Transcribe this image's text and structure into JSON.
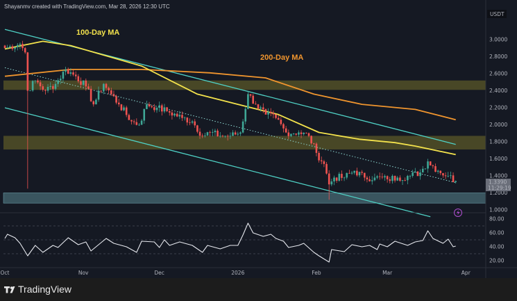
{
  "header": {
    "attribution": "Shayanmv created with TradingView.com, Mar 28, 2026 12:30 UTC"
  },
  "footer": {
    "brand": "TradingView",
    "logo_icon": "tradingview-logo-icon"
  },
  "colors": {
    "background": "#151923",
    "up": "#3fa796",
    "down": "#ef5350",
    "channel": "#4fd1c5",
    "ma100": "#f3e24c",
    "ma200": "#f0952e",
    "resistance_zone": "#4b4a27",
    "support_zone": "#3d5963",
    "rsi": "#e6e8ee"
  },
  "price_axis": {
    "currency": "USDT",
    "ticks": [
      "1.0000",
      "1.2000",
      "1.4000",
      "1.6000",
      "1.8000",
      "2.0000",
      "2.2000",
      "2.4000",
      "2.6000",
      "2.8000",
      "3.0000"
    ],
    "last_price": "1.3390",
    "countdown": "11:29:19"
  },
  "time_axis": {
    "labels": [
      {
        "date": "2025-10-01",
        "text": "Oct"
      },
      {
        "date": "2025-11-01",
        "text": "Nov"
      },
      {
        "date": "2025-12-01",
        "text": "Dec"
      },
      {
        "date": "2026-01-01",
        "text": "2026"
      },
      {
        "date": "2026-02-01",
        "text": "Feb"
      },
      {
        "date": "2026-03-01",
        "text": "Mar"
      },
      {
        "date": "2026-04-01",
        "text": "Apr"
      }
    ]
  },
  "annotations": {
    "ma100_label": "100-Day MA",
    "ma200_label": "200-Day MA"
  },
  "chart_data": [
    {
      "type": "candlestick",
      "ylim": [
        1.0,
        3.0
      ],
      "grid": false,
      "close": [
        [
          "2025-10-01",
          2.9
        ],
        [
          "2025-10-07",
          2.95
        ],
        [
          "2025-10-09",
          2.85
        ],
        [
          "2025-10-10",
          2.4
        ],
        [
          "2025-10-13",
          2.52
        ],
        [
          "2025-10-17",
          2.4
        ],
        [
          "2025-10-21",
          2.48
        ],
        [
          "2025-10-25",
          2.65
        ],
        [
          "2025-10-29",
          2.57
        ],
        [
          "2025-11-02",
          2.45
        ],
        [
          "2025-11-05",
          2.24
        ],
        [
          "2025-11-09",
          2.48
        ],
        [
          "2025-11-12",
          2.36
        ],
        [
          "2025-11-15",
          2.24
        ],
        [
          "2025-11-20",
          2.04
        ],
        [
          "2025-11-23",
          2.0
        ],
        [
          "2025-11-26",
          2.24
        ],
        [
          "2025-11-30",
          2.2
        ],
        [
          "2025-12-04",
          2.16
        ],
        [
          "2025-12-10",
          2.08
        ],
        [
          "2025-12-14",
          2.04
        ],
        [
          "2025-12-18",
          1.87
        ],
        [
          "2025-12-21",
          1.91
        ],
        [
          "2025-12-25",
          1.87
        ],
        [
          "2025-12-29",
          1.87
        ],
        [
          "2026-01-02",
          1.91
        ],
        [
          "2026-01-05",
          2.36
        ],
        [
          "2026-01-08",
          2.24
        ],
        [
          "2026-01-12",
          2.12
        ],
        [
          "2026-01-16",
          2.08
        ],
        [
          "2026-01-20",
          1.91
        ],
        [
          "2026-01-25",
          1.91
        ],
        [
          "2026-01-29",
          1.87
        ],
        [
          "2026-02-01",
          1.67
        ],
        [
          "2026-02-04",
          1.54
        ],
        [
          "2026-02-06",
          1.3
        ],
        [
          "2026-02-08",
          1.38
        ],
        [
          "2026-02-12",
          1.38
        ],
        [
          "2026-02-16",
          1.46
        ],
        [
          "2026-02-20",
          1.38
        ],
        [
          "2026-02-24",
          1.38
        ],
        [
          "2026-03-01",
          1.36
        ],
        [
          "2026-03-05",
          1.38
        ],
        [
          "2026-03-10",
          1.4
        ],
        [
          "2026-03-14",
          1.44
        ],
        [
          "2026-03-17",
          1.57
        ],
        [
          "2026-03-21",
          1.46
        ],
        [
          "2026-03-25",
          1.4
        ],
        [
          "2026-03-28",
          1.339
        ]
      ],
      "wick_extremes": [
        {
          "date": "2025-10-10",
          "low": 1.25
        },
        {
          "date": "2026-02-06",
          "low": 1.12
        },
        {
          "date": "2026-01-05",
          "high": 2.4
        },
        {
          "date": "2026-03-17",
          "high": 1.6
        }
      ],
      "ma100": [
        [
          "2025-10-01",
          2.89
        ],
        [
          "2025-10-16",
          2.98
        ],
        [
          "2025-10-27",
          2.93
        ],
        [
          "2025-11-24",
          2.69
        ],
        [
          "2025-12-16",
          2.36
        ],
        [
          "2026-01-01",
          2.24
        ],
        [
          "2026-01-17",
          2.12
        ],
        [
          "2026-02-02",
          1.91
        ],
        [
          "2026-02-18",
          1.83
        ],
        [
          "2026-03-04",
          1.79
        ],
        [
          "2026-03-12",
          1.75
        ],
        [
          "2026-03-28",
          1.65
        ]
      ],
      "ma200": [
        [
          "2025-10-01",
          2.57
        ],
        [
          "2025-10-27",
          2.65
        ],
        [
          "2025-11-24",
          2.65
        ],
        [
          "2025-12-21",
          2.61
        ],
        [
          "2026-01-12",
          2.55
        ],
        [
          "2026-01-31",
          2.36
        ],
        [
          "2026-02-19",
          2.24
        ],
        [
          "2026-03-12",
          2.18
        ],
        [
          "2026-03-28",
          2.06
        ]
      ],
      "channel": {
        "upper": [
          [
            "2025-10-01",
            3.12
          ],
          [
            "2026-03-28",
            1.77
          ]
        ],
        "middle": [
          [
            "2025-10-01",
            2.67
          ],
          [
            "2026-03-28",
            1.32
          ]
        ],
        "lower": [
          [
            "2025-10-01",
            2.2
          ],
          [
            "2026-03-18",
            0.92
          ]
        ]
      },
      "zones": [
        {
          "kind": "resistance",
          "from": 2.41,
          "to": 2.52
        },
        {
          "kind": "resistance",
          "from": 1.71,
          "to": 1.87
        },
        {
          "kind": "support",
          "from": 1.08,
          "to": 1.2
        }
      ]
    },
    {
      "type": "line",
      "ylabel": "",
      "ylim": [
        10,
        85
      ],
      "ticks": [
        "80.00",
        "60.00",
        "40.00",
        "20.00"
      ],
      "bands": [
        30,
        50,
        70
      ],
      "values": [
        [
          "2025-10-01",
          52
        ],
        [
          "2025-10-02",
          58
        ],
        [
          "2025-10-05",
          53
        ],
        [
          "2025-10-07",
          45
        ],
        [
          "2025-10-10",
          27
        ],
        [
          "2025-10-13",
          42
        ],
        [
          "2025-10-16",
          32
        ],
        [
          "2025-10-20",
          42
        ],
        [
          "2025-10-22",
          39
        ],
        [
          "2025-10-26",
          53
        ],
        [
          "2025-10-30",
          43
        ],
        [
          "2025-11-02",
          47
        ],
        [
          "2025-11-04",
          34
        ],
        [
          "2025-11-10",
          52
        ],
        [
          "2025-11-13",
          45
        ],
        [
          "2025-11-18",
          40
        ],
        [
          "2025-11-22",
          32
        ],
        [
          "2025-11-24",
          48
        ],
        [
          "2025-11-29",
          47
        ],
        [
          "2025-12-01",
          39
        ],
        [
          "2025-12-03",
          50
        ],
        [
          "2025-12-05",
          42
        ],
        [
          "2025-12-09",
          47
        ],
        [
          "2025-12-14",
          42
        ],
        [
          "2025-12-18",
          32
        ],
        [
          "2025-12-20",
          42
        ],
        [
          "2025-12-25",
          37
        ],
        [
          "2025-12-29",
          42
        ],
        [
          "2026-01-01",
          42
        ],
        [
          "2026-01-03",
          57
        ],
        [
          "2026-01-05",
          74
        ],
        [
          "2026-01-07",
          60
        ],
        [
          "2026-01-11",
          55
        ],
        [
          "2026-01-14",
          58
        ],
        [
          "2026-01-16",
          52
        ],
        [
          "2026-01-19",
          48
        ],
        [
          "2026-01-21",
          39
        ],
        [
          "2026-01-25",
          42
        ],
        [
          "2026-01-27",
          45
        ],
        [
          "2026-01-31",
          32
        ],
        [
          "2026-02-02",
          27
        ],
        [
          "2026-02-06",
          18
        ],
        [
          "2026-02-07",
          36
        ],
        [
          "2026-02-12",
          33
        ],
        [
          "2026-02-15",
          43
        ],
        [
          "2026-02-19",
          40
        ],
        [
          "2026-02-22",
          42
        ],
        [
          "2026-02-25",
          36
        ],
        [
          "2026-02-26",
          44
        ],
        [
          "2026-03-01",
          40
        ],
        [
          "2026-03-04",
          48
        ],
        [
          "2026-03-09",
          42
        ],
        [
          "2026-03-12",
          47
        ],
        [
          "2026-03-15",
          49
        ],
        [
          "2026-03-17",
          63
        ],
        [
          "2026-03-19",
          52
        ],
        [
          "2026-03-23",
          45
        ],
        [
          "2026-03-25",
          51
        ],
        [
          "2026-03-27",
          40
        ],
        [
          "2026-03-28",
          41
        ]
      ]
    }
  ]
}
